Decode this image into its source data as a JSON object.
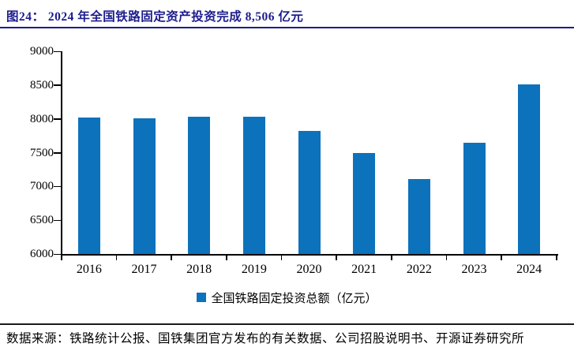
{
  "header": {
    "title": "图24：  2024 年全国铁路固定资产投资完成 8,506 亿元"
  },
  "chart_data": {
    "type": "bar",
    "title": "2024 年全国铁路固定资产投资完成 8,506 亿元",
    "categories": [
      "2016",
      "2017",
      "2018",
      "2019",
      "2020",
      "2021",
      "2022",
      "2023",
      "2024"
    ],
    "series": [
      {
        "name": "全国铁路固定投资总额（亿元）",
        "values": [
          8015,
          8010,
          8028,
          8029,
          7819,
          7489,
          7109,
          7645,
          8506
        ]
      }
    ],
    "xlabel": "",
    "ylabel": "",
    "ylim": [
      6000,
      9000
    ],
    "ytick_step": 500,
    "yticks": [
      6000,
      6500,
      7000,
      7500,
      8000,
      8500,
      9000
    ],
    "grid": false,
    "legend": "全国铁路固定投资总额（亿元）",
    "legend_position": "bottom",
    "bar_color": "#0d72bc"
  },
  "footer": {
    "source": "数据来源：铁路统计公报、国铁集团官方发布的有关数据、公司招股说明书、开源证券研究所"
  },
  "colors": {
    "title_navy": "#1c1c8e",
    "bar_blue": "#0d72bc",
    "axis_black": "#000000",
    "rule_black": "#1a1a1a"
  }
}
